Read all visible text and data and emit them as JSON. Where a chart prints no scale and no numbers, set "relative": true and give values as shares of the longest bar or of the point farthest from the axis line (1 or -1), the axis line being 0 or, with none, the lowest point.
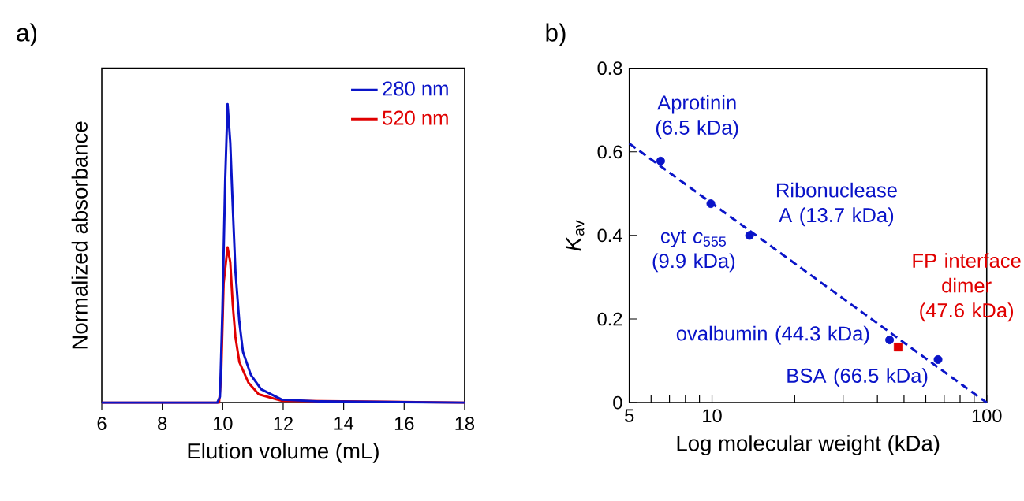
{
  "chart_data": [
    {
      "type": "line",
      "xlabel": "Elution volume (mL)",
      "ylabel": "Normalized absorbance",
      "relative": true,
      "xlim": [
        6,
        18
      ],
      "xticks": [
        6,
        8,
        10,
        12,
        14,
        16,
        18
      ],
      "tick_labels": "x",
      "legend": "top right",
      "annotations": [
        "a)"
      ],
      "series": [
        {
          "name": "280 nm",
          "color": "#0a14c8",
          "x": [
            6,
            9.82,
            9.91,
            9.99,
            10.08,
            10.16,
            10.25,
            10.33,
            10.42,
            10.55,
            10.67,
            10.93,
            11.27,
            11.96,
            13.2,
            18
          ],
          "values": [
            0,
            0,
            0.02,
            0.31,
            0.74,
            1.0,
            0.87,
            0.66,
            0.44,
            0.27,
            0.17,
            0.093,
            0.045,
            0.01,
            0.004,
            0
          ]
        },
        {
          "name": "520 nm",
          "color": "#e00000",
          "x": [
            6,
            9.88,
            9.95,
            10.03,
            10.16,
            10.25,
            10.33,
            10.42,
            10.55,
            10.85,
            11.19,
            11.96,
            18
          ],
          "values": [
            0,
            0,
            0.093,
            0.4,
            0.52,
            0.47,
            0.33,
            0.22,
            0.136,
            0.067,
            0.028,
            0.006,
            0
          ]
        }
      ]
    },
    {
      "type": "scatter",
      "xlabel": "Log molecular weight (kDa)",
      "ylabel": "*K*$_{av}$",
      "log": "x",
      "xlim": [
        5,
        100
      ],
      "xticks": [
        5,
        {
          "value": 6,
          "label": null
        },
        {
          "value": 7,
          "label": null
        },
        {
          "value": 8,
          "label": null
        },
        {
          "value": 9,
          "label": null
        },
        10,
        {
          "value": 20,
          "label": null
        },
        {
          "value": 30,
          "label": null
        },
        {
          "value": 40,
          "label": null
        },
        {
          "value": 50,
          "label": null
        },
        {
          "value": 60,
          "label": null
        },
        {
          "value": 70,
          "label": null
        },
        {
          "value": 80,
          "label": null
        },
        {
          "value": 90,
          "label": null
        },
        100
      ],
      "ylim": [
        0,
        0.8
      ],
      "yticks": [
        0,
        0.2,
        0.4,
        0.6,
        0.8
      ],
      "annotations": [
        "b)",
        {
          "text": "Aprotinin (6.5 kDa)",
          "x": 6.5,
          "y": 0.578
        },
        {
          "text": "cyt *c*$_{555}$ (9.9 kDa)",
          "x": 9.9,
          "y": 0.476
        },
        {
          "text": "Ribonuclease A (13.7 kDa)",
          "x": 13.7,
          "y": 0.4
        },
        {
          "text": "ovalbumin (44.3 kDa)",
          "x": 44.3,
          "y": 0.15
        },
        {
          "text": "BSA (66.5 kDa)",
          "x": 66.5,
          "y": 0.103
        },
        {
          "text": "FP interface dimer (47.6 kDa)",
          "x": 47.6,
          "y": 0.133
        }
      ],
      "series": [
        {
          "color": "#0a14c8",
          "marker": "circle",
          "x": [
            6.5,
            9.9,
            13.7,
            44.3,
            66.5
          ],
          "values": [
            0.578,
            0.476,
            0.4,
            0.15,
            0.103
          ]
        },
        {
          "color": "#e00000",
          "marker": "square",
          "x": [
            47.6
          ],
          "values": [
            0.133
          ]
        },
        {
          "type": "line",
          "color": "#0a14c8",
          "line_style": "dashed",
          "x": [
            5,
            100
          ],
          "values": [
            0.62,
            0.0
          ]
        }
      ]
    }
  ]
}
